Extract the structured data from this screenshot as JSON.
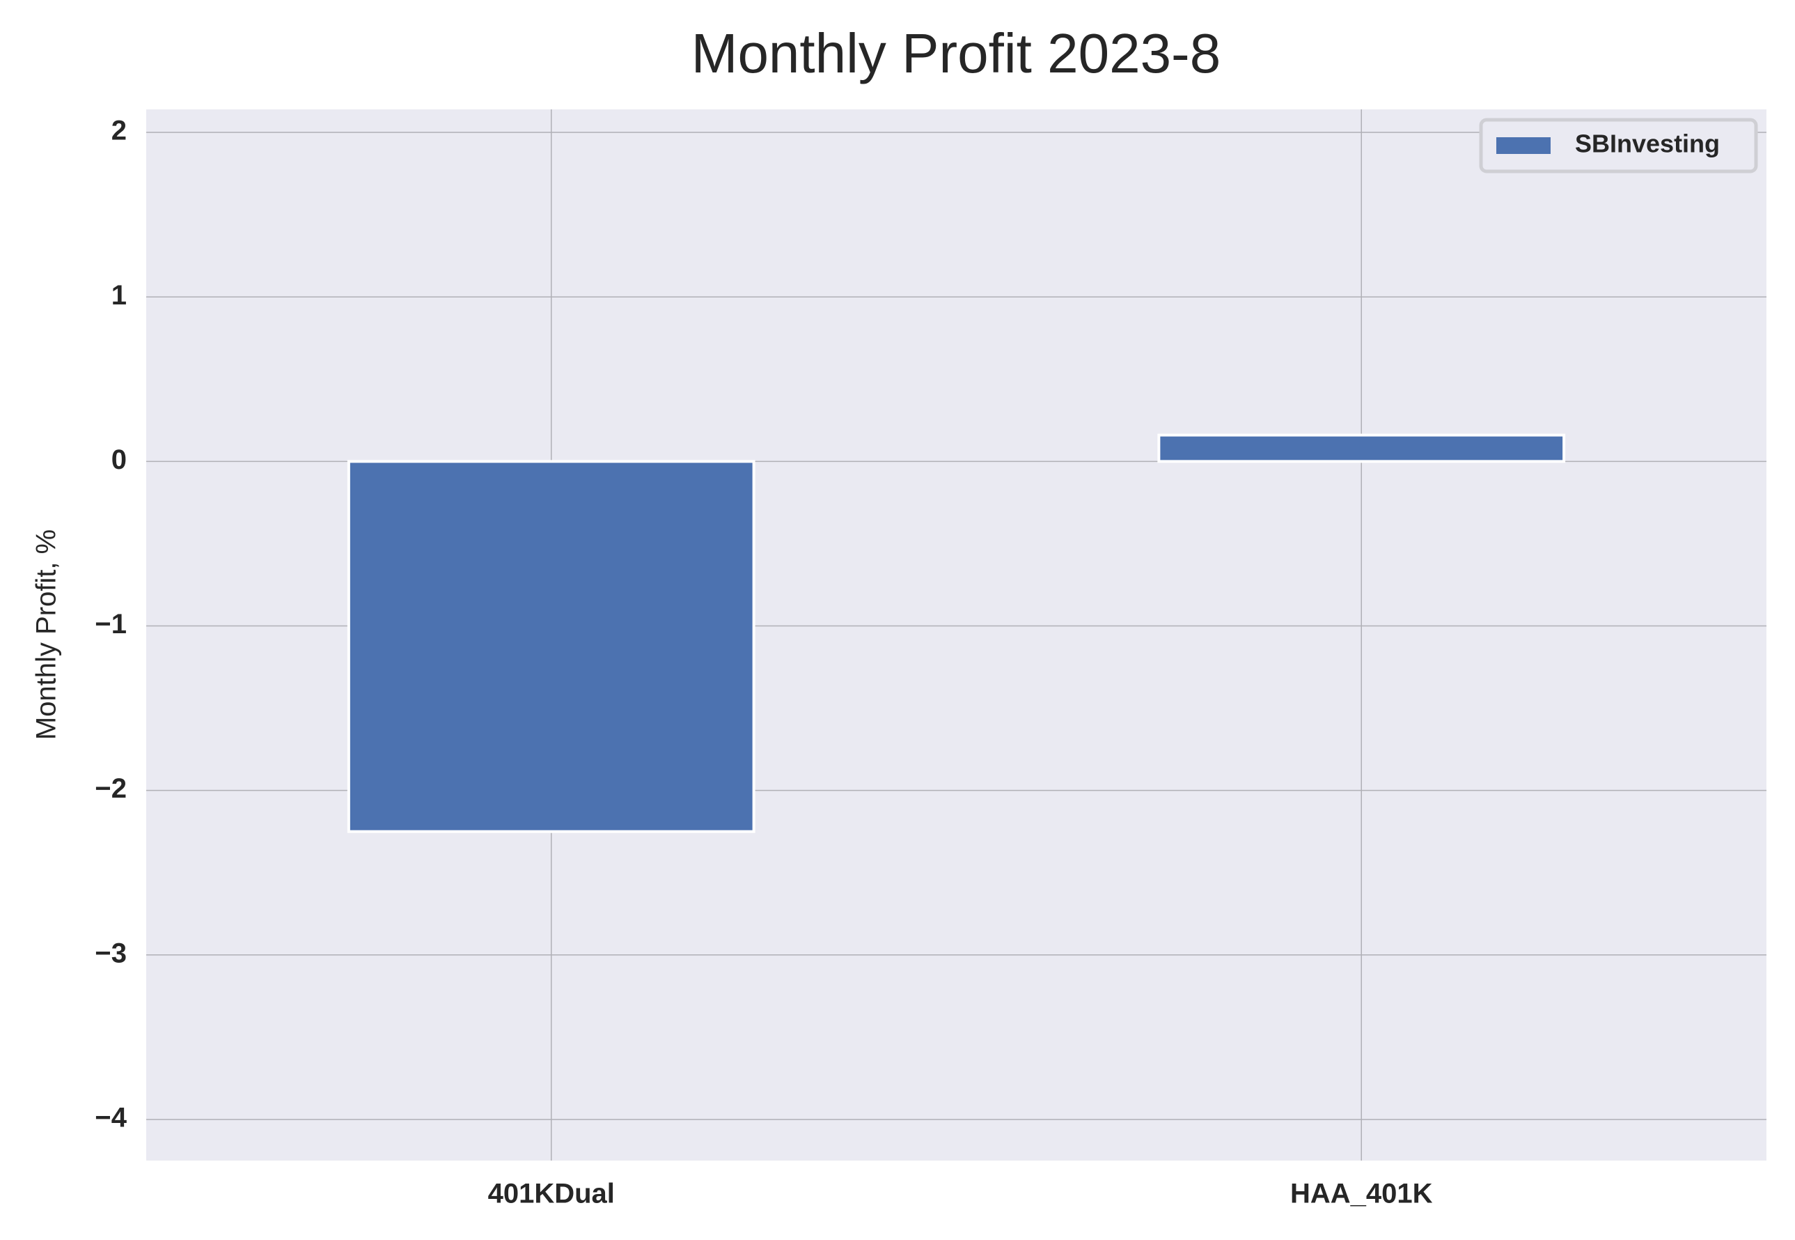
{
  "chart_data": {
    "type": "bar",
    "title": "Monthly Profit 2023-8",
    "y_label": "Monthly Profit, %",
    "categories": [
      "401KDual",
      "HAA_401K"
    ],
    "series": [
      {
        "name": "SBInvesting",
        "color": "#4c72b0",
        "values": [
          -2.25,
          0.16
        ]
      }
    ],
    "ylim": [
      -4.25,
      2.14
    ],
    "yticks": [
      {
        "value": -4,
        "label": "−4"
      },
      {
        "value": -3,
        "label": "−3"
      },
      {
        "value": -2,
        "label": "−2"
      },
      {
        "value": -1,
        "label": "−1"
      },
      0,
      1,
      2
    ],
    "grid": true,
    "legend": "upper right"
  }
}
